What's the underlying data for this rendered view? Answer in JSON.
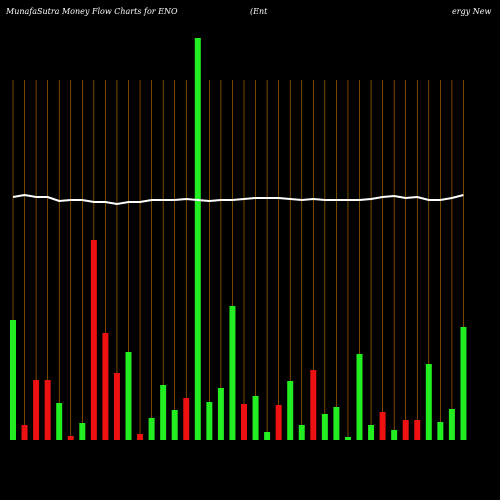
{
  "chart_data": {
    "type": "bar",
    "title": "MunafaSutra  Money Flow  Charts for ENO",
    "subtitle_left": "(Ent",
    "subtitle_right": "ergy New",
    "categories": [
      null,
      null,
      null,
      null,
      null,
      null,
      null,
      null,
      null,
      null,
      null,
      null,
      null,
      null,
      null,
      null,
      null,
      null,
      null,
      null,
      null,
      null,
      null,
      null,
      null,
      null,
      null,
      null,
      null,
      null,
      null,
      null,
      null,
      null,
      null,
      null,
      null,
      null,
      null,
      null
    ],
    "values": [
      120,
      15,
      60,
      60,
      37,
      4,
      17,
      200,
      107,
      67,
      88,
      6,
      22,
      55,
      30,
      42,
      402,
      38,
      52,
      134,
      36,
      44,
      8,
      35,
      59,
      15,
      70,
      26,
      33,
      3,
      86,
      15,
      28,
      10,
      20,
      20,
      76,
      18,
      31,
      113
    ],
    "colors": [
      "#22ee22",
      "#ee1111",
      "#ee1111",
      "#ee1111",
      "#22ee22",
      "#ee1111",
      "#22ee22",
      "#ee1111",
      "#ee1111",
      "#ee1111",
      "#22ee22",
      "#ee1111",
      "#22ee22",
      "#22ee22",
      "#22ee22",
      "#ee1111",
      "#22ee22",
      "#22ee22",
      "#22ee22",
      "#22ee22",
      "#ee1111",
      "#22ee22",
      "#22ee22",
      "#ee1111",
      "#22ee22",
      "#22ee22",
      "#ee1111",
      "#22ee22",
      "#22ee22",
      "#22ee22",
      "#22ee22",
      "#22ee22",
      "#ee1111",
      "#22ee22",
      "#ee1111",
      "#ee1111",
      "#22ee22",
      "#22ee22",
      "#22ee22",
      "#22ee22"
    ],
    "line": {
      "color": "#ffffff",
      "values": [
        243,
        245,
        243,
        243,
        239,
        240,
        240,
        238,
        238,
        236,
        238,
        238,
        240,
        240,
        240,
        241,
        240,
        239,
        240,
        240,
        241,
        242,
        242,
        242,
        241,
        240,
        241,
        240,
        240,
        240,
        240,
        241,
        243,
        244,
        242,
        243,
        240,
        240,
        242,
        245
      ]
    },
    "ylim": [
      0,
      402
    ],
    "gridline_color": "#cc7700"
  }
}
